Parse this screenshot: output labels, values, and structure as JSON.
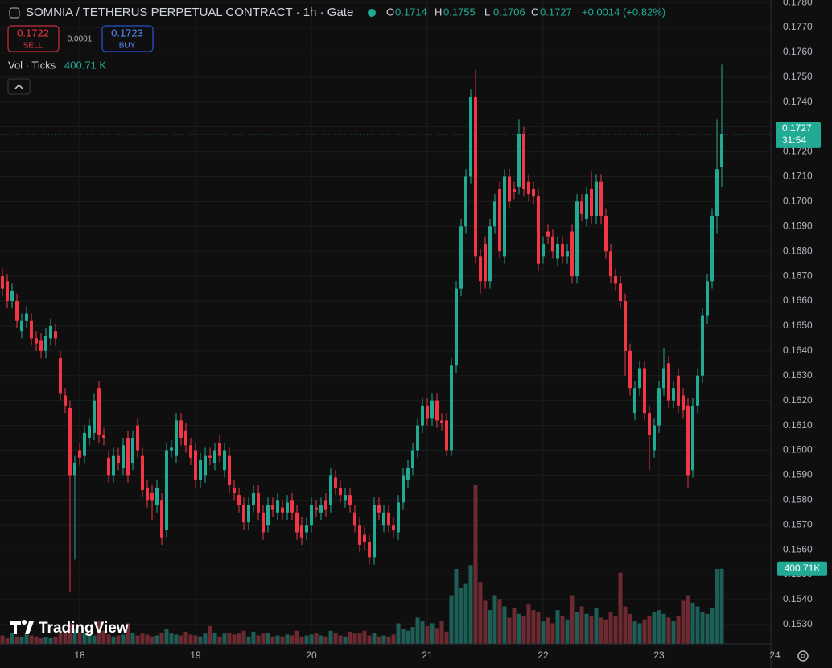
{
  "chart_data": {
    "type": "candlestick",
    "title": "SOMNIA / TETHERUS PERPETUAL CONTRACT · 1h · Gate",
    "ohlc_keys": [
      "O",
      "H",
      "L",
      "C"
    ],
    "change_label": "+0.0014 (+0.82%)",
    "sell": {
      "price": 0.1722,
      "label": "SELL"
    },
    "spread": 0.0001,
    "buy": {
      "price": 0.1723,
      "label": "BUY"
    },
    "volume_title": "Vol · Ticks",
    "volume_label": "400.71 K",
    "volume_tag": "400.71K",
    "countdown": "31:54",
    "logo": "TradingView",
    "up_color": "#22ab94",
    "down_color": "#f23645",
    "volume_up_color": "#1d5f57",
    "volume_down_color": "#6e2a31",
    "open": [
      0.167,
      0.1668,
      0.166,
      0.166,
      0.1648,
      0.1652,
      0.1652,
      0.1645,
      0.1644,
      0.164,
      0.1645,
      0.1648,
      0.1637,
      0.1622,
      0.1617,
      0.159,
      0.16,
      0.1598,
      0.1605,
      0.1607,
      0.1625,
      0.1606,
      0.1597,
      0.159,
      0.1598,
      0.1593,
      0.1605,
      0.1595,
      0.161,
      0.1598,
      0.1585,
      0.1583,
      0.1578,
      0.158,
      0.1568,
      0.16,
      0.1598,
      0.1612,
      0.1608,
      0.1602,
      0.16,
      0.1588,
      0.159,
      0.1598,
      0.1595,
      0.1603,
      0.1592,
      0.1598,
      0.1585,
      0.1582,
      0.1578,
      0.1571,
      0.1578,
      0.1583,
      0.1575,
      0.157,
      0.1578,
      0.1575,
      0.1577,
      0.1575,
      0.158,
      0.1575,
      0.157,
      0.1567,
      0.157,
      0.1577,
      0.1575,
      0.158,
      0.1578,
      0.1589,
      0.1585,
      0.158,
      0.1582,
      0.1575,
      0.157,
      0.1566,
      0.1563,
      0.1557,
      0.1578,
      0.157,
      0.1575,
      0.157,
      0.1567,
      0.1579,
      0.1588,
      0.1593,
      0.16,
      0.161,
      0.1618,
      0.1613,
      0.162,
      0.1612,
      0.1612,
      0.16,
      0.1634,
      0.1665,
      0.169,
      0.171,
      0.1742,
      0.1678,
      0.1683,
      0.1668,
      0.169,
      0.1705,
      0.1678,
      0.171,
      0.1705,
      0.1706,
      0.1727,
      0.1708,
      0.1705,
      0.1702,
      0.1678,
      0.1688,
      0.1686,
      0.1677,
      0.1683,
      0.1678,
      0.1688,
      0.167,
      0.17,
      0.1693,
      0.1705,
      0.1694,
      0.1708,
      0.1694,
      0.168,
      0.167,
      0.1667,
      0.166,
      0.164,
      0.1615,
      0.1625,
      0.1633,
      0.1615,
      0.16,
      0.161,
      0.1625,
      0.1635,
      0.162,
      0.163,
      0.1622,
      0.1618,
      0.1592,
      0.1618,
      0.163,
      0.1654,
      0.1668,
      0.1694,
      0.1714
    ],
    "high": [
      0.1673,
      0.1671,
      0.1667,
      0.1663,
      0.1655,
      0.1658,
      0.1655,
      0.1648,
      0.1647,
      0.1649,
      0.1653,
      0.1651,
      0.164,
      0.1625,
      0.162,
      0.1598,
      0.1603,
      0.161,
      0.1613,
      0.1623,
      0.1628,
      0.1609,
      0.16,
      0.1601,
      0.1601,
      0.1605,
      0.1608,
      0.1608,
      0.1613,
      0.1601,
      0.1588,
      0.1586,
      0.1588,
      0.1583,
      0.1603,
      0.1604,
      0.1615,
      0.1615,
      0.1611,
      0.1605,
      0.1603,
      0.1599,
      0.1601,
      0.1601,
      0.1603,
      0.1606,
      0.1603,
      0.1601,
      0.1588,
      0.1585,
      0.1581,
      0.1581,
      0.1586,
      0.1586,
      0.1578,
      0.1581,
      0.1581,
      0.1583,
      0.158,
      0.1582,
      0.1583,
      0.1578,
      0.1573,
      0.1573,
      0.1581,
      0.158,
      0.1581,
      0.1583,
      0.1593,
      0.1592,
      0.1588,
      0.1585,
      0.1585,
      0.1578,
      0.1573,
      0.1569,
      0.1566,
      0.1581,
      0.1581,
      0.1578,
      0.1578,
      0.1573,
      0.1582,
      0.1593,
      0.1596,
      0.1603,
      0.1613,
      0.1621,
      0.1621,
      0.1623,
      0.1623,
      0.1615,
      0.1615,
      0.1637,
      0.1668,
      0.1693,
      0.1713,
      0.1745,
      0.1753,
      0.1681,
      0.1686,
      0.1693,
      0.1703,
      0.1708,
      0.1713,
      0.1713,
      0.1708,
      0.1733,
      0.173,
      0.1711,
      0.1708,
      0.1705,
      0.1686,
      0.1691,
      0.1689,
      0.1686,
      0.1686,
      0.1683,
      0.1691,
      0.1703,
      0.1703,
      0.1706,
      0.1712,
      0.1711,
      0.1711,
      0.1697,
      0.1683,
      0.1673,
      0.167,
      0.1663,
      0.1643,
      0.1628,
      0.1636,
      0.1636,
      0.1618,
      0.1613,
      0.1628,
      0.1641,
      0.1638,
      0.1628,
      0.1633,
      0.1625,
      0.1621,
      0.1621,
      0.1633,
      0.1657,
      0.1671,
      0.1697,
      0.1733,
      0.1755
    ],
    "low": [
      0.1662,
      0.1657,
      0.1657,
      0.1649,
      0.1645,
      0.1649,
      0.1642,
      0.164,
      0.1637,
      0.1637,
      0.1642,
      0.1642,
      0.162,
      0.1615,
      0.1543,
      0.1556,
      0.1594,
      0.1595,
      0.1602,
      0.1604,
      0.1603,
      0.1602,
      0.1587,
      0.1587,
      0.1592,
      0.159,
      0.1587,
      0.1592,
      0.1597,
      0.1581,
      0.1577,
      0.1572,
      0.1575,
      0.1562,
      0.1565,
      0.1597,
      0.1595,
      0.1602,
      0.1599,
      0.1594,
      0.1585,
      0.1585,
      0.1587,
      0.1594,
      0.1592,
      0.1595,
      0.1589,
      0.1583,
      0.158,
      0.1575,
      0.1568,
      0.1568,
      0.1575,
      0.1572,
      0.1564,
      0.1567,
      0.1573,
      0.1572,
      0.1572,
      0.1572,
      0.1572,
      0.1564,
      0.1562,
      0.1564,
      0.1567,
      0.1573,
      0.1572,
      0.1573,
      0.1575,
      0.1582,
      0.1579,
      0.1577,
      0.1575,
      0.1567,
      0.1559,
      0.156,
      0.1554,
      0.1554,
      0.1572,
      0.1567,
      0.1567,
      0.1565,
      0.1564,
      0.1576,
      0.1585,
      0.159,
      0.1597,
      0.1607,
      0.161,
      0.161,
      0.1609,
      0.1608,
      0.1598,
      0.1598,
      0.1631,
      0.1662,
      0.1687,
      0.1707,
      0.1675,
      0.1663,
      0.1665,
      0.1665,
      0.1687,
      0.1677,
      0.1675,
      0.1697,
      0.1701,
      0.1703,
      0.1702,
      0.17,
      0.1699,
      0.1672,
      0.1675,
      0.1683,
      0.1677,
      0.1674,
      0.1675,
      0.1675,
      0.1667,
      0.1667,
      0.1692,
      0.169,
      0.1691,
      0.1691,
      0.1691,
      0.1677,
      0.1667,
      0.1664,
      0.1657,
      0.163,
      0.1622,
      0.1612,
      0.1622,
      0.1612,
      0.1592,
      0.1597,
      0.1607,
      0.1622,
      0.1617,
      0.1617,
      0.1615,
      0.1613,
      0.1585,
      0.1589,
      0.1615,
      0.1627,
      0.1651,
      0.1665,
      0.1687,
      0.1706
    ],
    "close": [
      0.1665,
      0.166,
      0.1664,
      0.1652,
      0.1652,
      0.1655,
      0.1645,
      0.1643,
      0.164,
      0.1646,
      0.165,
      0.1645,
      0.1623,
      0.1618,
      0.159,
      0.1595,
      0.1597,
      0.1607,
      0.161,
      0.162,
      0.1606,
      0.1605,
      0.159,
      0.1598,
      0.1595,
      0.1602,
      0.159,
      0.1605,
      0.16,
      0.1584,
      0.158,
      0.158,
      0.1585,
      0.1565,
      0.16,
      0.1601,
      0.1612,
      0.1605,
      0.1602,
      0.1597,
      0.1588,
      0.1596,
      0.1598,
      0.1597,
      0.16,
      0.1598,
      0.16,
      0.1586,
      0.1583,
      0.1578,
      0.1571,
      0.1578,
      0.1583,
      0.1575,
      0.1567,
      0.1578,
      0.1576,
      0.158,
      0.1575,
      0.1579,
      0.1575,
      0.1567,
      0.1565,
      0.157,
      0.1578,
      0.1576,
      0.1578,
      0.1576,
      0.159,
      0.1585,
      0.1582,
      0.1582,
      0.1578,
      0.157,
      0.1562,
      0.1563,
      0.1557,
      0.1578,
      0.1575,
      0.1575,
      0.157,
      0.1568,
      0.1579,
      0.159,
      0.1593,
      0.16,
      0.161,
      0.1618,
      0.1613,
      0.162,
      0.1612,
      0.1611,
      0.16,
      0.1634,
      0.1665,
      0.169,
      0.171,
      0.1742,
      0.1678,
      0.1668,
      0.1668,
      0.169,
      0.17,
      0.168,
      0.171,
      0.17,
      0.1704,
      0.1727,
      0.1705,
      0.1703,
      0.1702,
      0.1675,
      0.1683,
      0.1686,
      0.168,
      0.1683,
      0.1678,
      0.168,
      0.167,
      0.17,
      0.1695,
      0.1703,
      0.1694,
      0.1708,
      0.1694,
      0.168,
      0.167,
      0.1667,
      0.166,
      0.164,
      0.1625,
      0.1625,
      0.1633,
      0.1615,
      0.1606,
      0.161,
      0.1625,
      0.1633,
      0.162,
      0.1625,
      0.1618,
      0.1616,
      0.159,
      0.1618,
      0.163,
      0.1654,
      0.1668,
      0.1694,
      0.1713,
      0.1727
    ],
    "volume": [
      45,
      30,
      60,
      40,
      35,
      50,
      45,
      40,
      30,
      35,
      30,
      40,
      55,
      70,
      110,
      75,
      60,
      55,
      50,
      45,
      120,
      70,
      50,
      40,
      45,
      50,
      110,
      60,
      45,
      55,
      50,
      40,
      45,
      60,
      80,
      55,
      50,
      45,
      65,
      50,
      45,
      40,
      55,
      95,
      60,
      40,
      55,
      60,
      50,
      55,
      70,
      40,
      65,
      45,
      55,
      60,
      40,
      45,
      40,
      50,
      45,
      70,
      40,
      45,
      50,
      55,
      45,
      40,
      70,
      60,
      45,
      40,
      65,
      55,
      60,
      70,
      45,
      60,
      40,
      45,
      40,
      50,
      110,
      80,
      70,
      90,
      140,
      120,
      95,
      110,
      85,
      120,
      65,
      260,
      400,
      300,
      320,
      420,
      850,
      330,
      230,
      180,
      260,
      240,
      200,
      140,
      190,
      160,
      150,
      210,
      180,
      170,
      120,
      140,
      110,
      180,
      150,
      130,
      260,
      170,
      200,
      160,
      150,
      190,
      140,
      130,
      170,
      150,
      380,
      200,
      160,
      120,
      110,
      130,
      150,
      170,
      180,
      160,
      140,
      120,
      150,
      230,
      260,
      220,
      200,
      170,
      160,
      190,
      400,
      400.71
    ],
    "xlim": [
      -0.5,
      159.5
    ],
    "xticks": [
      {
        "value": 16,
        "label": "18"
      },
      {
        "value": 40,
        "label": "19"
      },
      {
        "value": 64,
        "label": "20"
      },
      {
        "value": 88,
        "label": "21"
      },
      {
        "value": 112,
        "label": "22"
      },
      {
        "value": 136,
        "label": "23"
      },
      {
        "value": 160,
        "label": "24"
      }
    ],
    "ylim": [
      0.15222,
      0.1781
    ],
    "yticks": [
      {
        "value": 0.153,
        "label": "0.1530"
      },
      {
        "value": 0.154,
        "label": "0.1540"
      },
      {
        "value": 0.155,
        "label": "0.1550"
      },
      {
        "value": 0.156,
        "label": "0.1560"
      },
      {
        "value": 0.157,
        "label": "0.1570"
      },
      {
        "value": 0.158,
        "label": "0.1580"
      },
      {
        "value": 0.159,
        "label": "0.1590"
      },
      {
        "value": 0.16,
        "label": "0.1600"
      },
      {
        "value": 0.161,
        "label": "0.1610"
      },
      {
        "value": 0.162,
        "label": "0.1620"
      },
      {
        "value": 0.163,
        "label": "0.1630"
      },
      {
        "value": 0.164,
        "label": "0.1640"
      },
      {
        "value": 0.165,
        "label": "0.1650"
      },
      {
        "value": 0.166,
        "label": "0.1660"
      },
      {
        "value": 0.167,
        "label": "0.1670"
      },
      {
        "value": 0.168,
        "label": "0.1680"
      },
      {
        "value": 0.169,
        "label": "0.1690"
      },
      {
        "value": 0.17,
        "label": "0.1700"
      },
      {
        "value": 0.171,
        "label": "0.1710"
      },
      {
        "value": 0.172,
        "label": "0.1720"
      },
      {
        "value": 0.173,
        "label": "0.1730"
      },
      {
        "value": 0.174,
        "label": "0.1740"
      },
      {
        "value": 0.175,
        "label": "0.1750"
      },
      {
        "value": 0.176,
        "label": "0.1760"
      },
      {
        "value": 0.177,
        "label": "0.1770"
      },
      {
        "value": 0.178,
        "label": "0.1780"
      }
    ],
    "volume_ylim": [
      0,
      860
    ],
    "grid": true
  }
}
